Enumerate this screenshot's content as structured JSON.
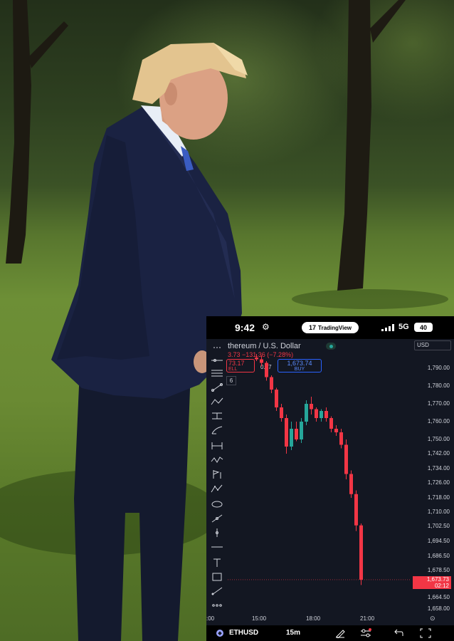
{
  "photo": {
    "description_icon": "person-in-park"
  },
  "status_bar": {
    "time": "9:42",
    "time_icon": "⚙",
    "app_badge": "TradingView",
    "app_logo": "17",
    "network": "5G",
    "battery": "40"
  },
  "chart_header": {
    "symbol_title": "thereum / U.S. Dollar",
    "change": "3.73  −131.36  (−7.28%)",
    "sell_price": "73.17",
    "sell_label": "ELL",
    "spread": "0.57",
    "buy_price": "1,673.74",
    "buy_label": "BUY",
    "quantity": "6",
    "currency": "USD"
  },
  "price_axis": {
    "ticks": [
      "1,790.00",
      "1,780.00",
      "1,770.00",
      "1,760.00",
      "1,750.00",
      "1,742.00",
      "1,734.00",
      "1,726.00",
      "1,718.00",
      "1,710.00",
      "1,702.50",
      "1,694.50",
      "1,686.50",
      "1,678.50",
      "1,664.50",
      "1,658.00"
    ],
    "last_price": "1,673.73",
    "countdown": "02:12"
  },
  "time_axis": {
    "ticks": [
      ":00",
      "15:00",
      "18:00",
      "21:00"
    ]
  },
  "bottom_bar": {
    "symbol": "ETHUSD",
    "interval": "15m",
    "coin_glyph": "◆"
  },
  "colors": {
    "up": "#26a69a",
    "down": "#f23645",
    "background": "#131722",
    "buy": "#2962ff"
  },
  "chart_data": {
    "type": "candlestick",
    "title": "thereum / U.S. Dollar",
    "interval": "15m",
    "ylim": [
      1658,
      1800
    ],
    "x_ticks": [
      "15:00",
      "18:00",
      "21:00"
    ],
    "candles": [
      {
        "o": 1796,
        "h": 1798,
        "l": 1794,
        "c": 1795
      },
      {
        "o": 1795,
        "h": 1797,
        "l": 1791,
        "c": 1793
      },
      {
        "o": 1793,
        "h": 1794,
        "l": 1783,
        "c": 1785
      },
      {
        "o": 1785,
        "h": 1786,
        "l": 1776,
        "c": 1778
      },
      {
        "o": 1778,
        "h": 1779,
        "l": 1766,
        "c": 1768
      },
      {
        "o": 1768,
        "h": 1770,
        "l": 1760,
        "c": 1762
      },
      {
        "o": 1762,
        "h": 1764,
        "l": 1742,
        "c": 1746
      },
      {
        "o": 1746,
        "h": 1760,
        "l": 1744,
        "c": 1756
      },
      {
        "o": 1756,
        "h": 1760,
        "l": 1749,
        "c": 1750
      },
      {
        "o": 1750,
        "h": 1762,
        "l": 1748,
        "c": 1760
      },
      {
        "o": 1760,
        "h": 1772,
        "l": 1758,
        "c": 1770
      },
      {
        "o": 1770,
        "h": 1774,
        "l": 1764,
        "c": 1767
      },
      {
        "o": 1767,
        "h": 1768,
        "l": 1760,
        "c": 1762
      },
      {
        "o": 1762,
        "h": 1767,
        "l": 1760,
        "c": 1766
      },
      {
        "o": 1766,
        "h": 1768,
        "l": 1760,
        "c": 1762
      },
      {
        "o": 1762,
        "h": 1763,
        "l": 1754,
        "c": 1756
      },
      {
        "o": 1756,
        "h": 1758,
        "l": 1752,
        "c": 1754
      },
      {
        "o": 1754,
        "h": 1756,
        "l": 1745,
        "c": 1747
      },
      {
        "o": 1747,
        "h": 1750,
        "l": 1728,
        "c": 1731
      },
      {
        "o": 1731,
        "h": 1733,
        "l": 1718,
        "c": 1720
      },
      {
        "o": 1720,
        "h": 1722,
        "l": 1700,
        "c": 1703
      },
      {
        "o": 1703,
        "h": 1704,
        "l": 1671,
        "c": 1673.73
      }
    ]
  }
}
